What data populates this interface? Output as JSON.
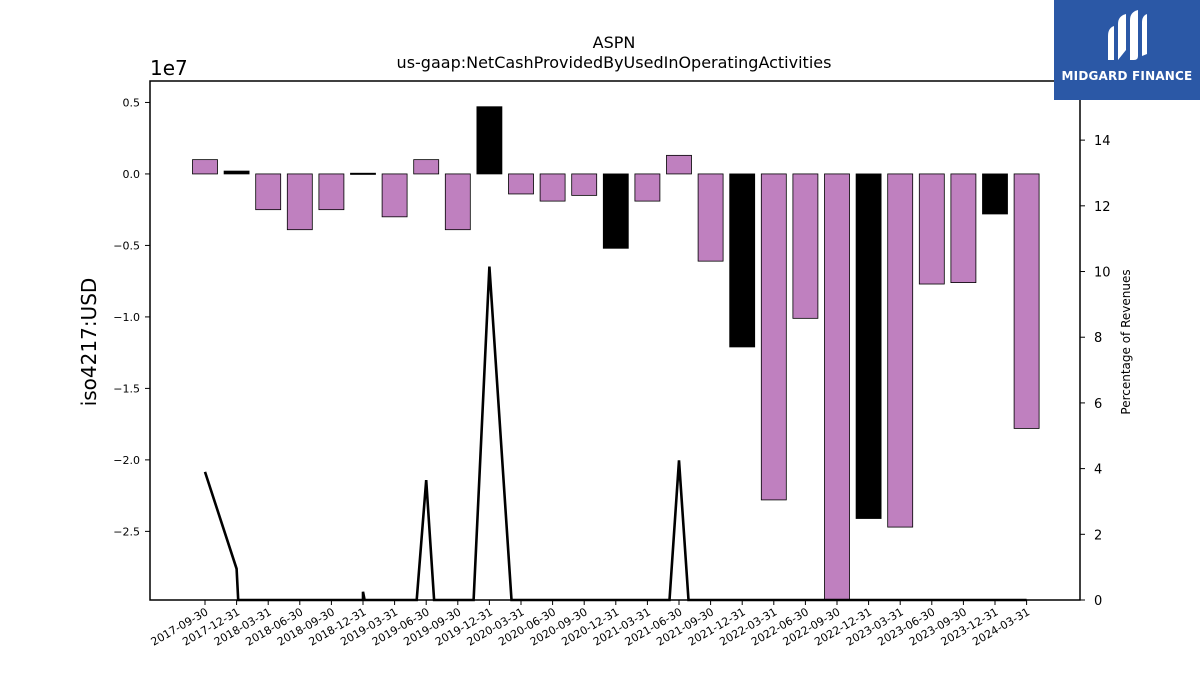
{
  "brand": {
    "name": "MIDGARD FINANCE",
    "bg_color": "#2b58a6"
  },
  "chart_data": {
    "type": "bar",
    "title": "ASPN",
    "subtitle": "us-gaap:NetCashProvidedByUsedInOperatingActivities",
    "ylabel": "iso4217:USD",
    "y2label": "Percentage of Revenues",
    "y_offset_label": "1e7",
    "ylim": [
      -2.98,
      0.65
    ],
    "y2lim": [
      0,
      15.8
    ],
    "yticks": [
      0.5,
      0.0,
      -0.5,
      -1.0,
      -1.5,
      -2.0,
      -2.5
    ],
    "ytick_labels": [
      "0.5",
      "0.0",
      "−0.5",
      "−1.0",
      "−1.5",
      "−2.0",
      "−2.5"
    ],
    "y2ticks": [
      0,
      2,
      4,
      6,
      8,
      10,
      12,
      14
    ],
    "categories": [
      "2017-09-30",
      "2017-12-31",
      "2018-03-31",
      "2018-06-30",
      "2018-09-30",
      "2018-12-31",
      "2019-03-31",
      "2019-06-30",
      "2019-09-30",
      "2019-12-31",
      "2020-03-31",
      "2020-06-30",
      "2020-09-30",
      "2020-12-31",
      "2021-03-31",
      "2021-06-30",
      "2021-09-30",
      "2021-12-31",
      "2022-03-31",
      "2022-06-30",
      "2022-09-30",
      "2022-12-31",
      "2023-03-31",
      "2023-06-30",
      "2023-09-30",
      "2023-12-31",
      "2024-03-31"
    ],
    "series": [
      {
        "values": [
          0.1,
          0.02,
          -0.25,
          -0.39,
          -0.25,
          0.005,
          -0.3,
          0.1,
          -0.39,
          0.47,
          -0.14,
          -0.19,
          -0.15,
          -0.52,
          -0.19,
          0.13,
          -0.61,
          -1.21,
          -2.28,
          -1.01,
          -3.0,
          -2.41,
          -2.47,
          -0.77,
          -0.76,
          -0.28,
          -1.78
        ],
        "colors": [
          "#bf80bf",
          "#000000",
          "#bf80bf",
          "#bf80bf",
          "#bf80bf",
          "#000000",
          "#bf80bf",
          "#bf80bf",
          "#bf80bf",
          "#000000",
          "#bf80bf",
          "#bf80bf",
          "#bf80bf",
          "#000000",
          "#bf80bf",
          "#bf80bf",
          "#bf80bf",
          "#000000",
          "#bf80bf",
          "#bf80bf",
          "#bf80bf",
          "#000000",
          "#bf80bf",
          "#bf80bf",
          "#bf80bf",
          "#000000",
          "#bf80bf"
        ]
      },
      {
        "type": "line",
        "axis": "right",
        "points": [
          [
            0,
            3.9
          ],
          [
            1,
            0.95
          ],
          [
            1.05,
            0
          ],
          [
            5,
            0
          ],
          [
            5,
            0.25
          ],
          [
            5.05,
            0
          ],
          [
            6.7,
            0
          ],
          [
            7,
            3.65
          ],
          [
            7.25,
            0
          ],
          [
            8.5,
            0
          ],
          [
            9,
            10.15
          ],
          [
            9.7,
            0
          ],
          [
            14.7,
            0
          ],
          [
            15,
            4.25
          ],
          [
            15.3,
            0
          ],
          [
            26,
            0
          ]
        ]
      }
    ]
  }
}
